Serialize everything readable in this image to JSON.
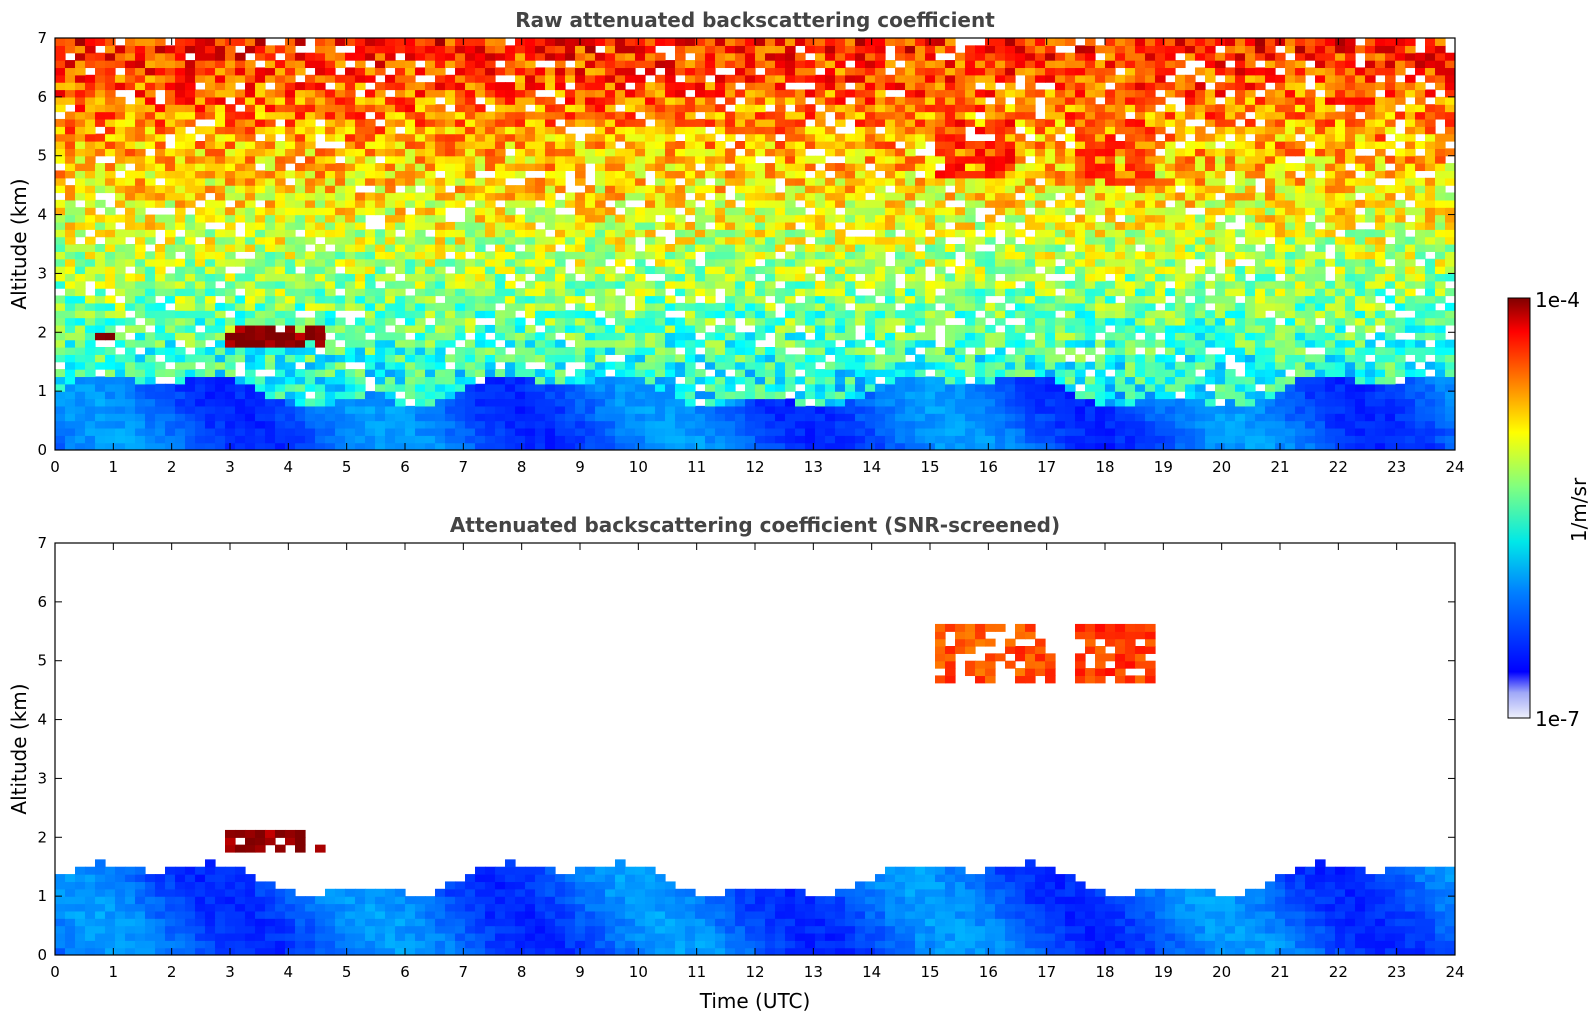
{
  "chart_data": [
    {
      "type": "heatmap",
      "title": "Raw attenuated backscattering coefficient",
      "xlabel": "",
      "ylabel": "Altitude (km)",
      "xlim": [
        0,
        24
      ],
      "ylim": [
        0,
        7
      ],
      "x_ticks": [
        "0",
        "1",
        "2",
        "3",
        "4",
        "5",
        "6",
        "7",
        "8",
        "9",
        "10",
        "11",
        "12",
        "13",
        "14",
        "15",
        "16",
        "17",
        "18",
        "19",
        "20",
        "21",
        "22",
        "23",
        "24"
      ],
      "y_ticks": [
        "0",
        "1",
        "2",
        "3",
        "4",
        "5",
        "6",
        "7"
      ],
      "features": [
        {
          "label": "boundary layer aerosol",
          "x": [
            0,
            24
          ],
          "y": [
            0,
            1.0
          ],
          "level": 0.22
        },
        {
          "label": "cloud",
          "x": [
            0.65,
            0.95
          ],
          "y": [
            1.85,
            1.95
          ],
          "level": 0.98
        },
        {
          "label": "cloud",
          "x": [
            2.9,
            4.6
          ],
          "y": [
            1.75,
            2.1
          ],
          "level": 0.98
        },
        {
          "label": "cloud",
          "x": [
            15.1,
            16.5
          ],
          "y": [
            4.6,
            5.6
          ],
          "level": 0.85
        },
        {
          "label": "cloud",
          "x": [
            17.5,
            18.9
          ],
          "y": [
            4.5,
            5.6
          ],
          "level": 0.82
        }
      ]
    },
    {
      "type": "heatmap",
      "title": "Attenuated backscattering coefficient (SNR-screened)",
      "xlabel": "Time (UTC)",
      "ylabel": "Altitude (km)",
      "xlim": [
        0,
        24
      ],
      "ylim": [
        0,
        7
      ],
      "x_ticks": [
        "0",
        "1",
        "2",
        "3",
        "4",
        "5",
        "6",
        "7",
        "8",
        "9",
        "10",
        "11",
        "12",
        "13",
        "14",
        "15",
        "16",
        "17",
        "18",
        "19",
        "20",
        "21",
        "22",
        "23",
        "24"
      ],
      "y_ticks": [
        "0",
        "1",
        "2",
        "3",
        "4",
        "5",
        "6",
        "7"
      ],
      "features": [
        {
          "label": "boundary layer aerosol",
          "x": [
            0,
            24
          ],
          "y": [
            0,
            1.3
          ],
          "level": 0.22
        },
        {
          "label": "cloud",
          "x": [
            0.65,
            0.95
          ],
          "y": [
            1.85,
            1.95
          ],
          "level": 0.98
        },
        {
          "label": "cloud",
          "x": [
            2.9,
            4.6
          ],
          "y": [
            1.75,
            2.1
          ],
          "level": 0.98
        },
        {
          "label": "cloud",
          "x": [
            15.1,
            17.2
          ],
          "y": [
            4.6,
            5.6
          ],
          "level": 0.8
        },
        {
          "label": "cloud",
          "x": [
            17.5,
            18.9
          ],
          "y": [
            4.6,
            5.6
          ],
          "level": 0.82
        }
      ]
    }
  ],
  "colorbar": {
    "max_label": "1e-4",
    "min_label": "1e-7",
    "unit_label": "1/m/sr",
    "scale": "log",
    "colormap": "jet"
  },
  "colors": {
    "title": "#444444",
    "axes": "#000000",
    "background": "#ffffff"
  }
}
